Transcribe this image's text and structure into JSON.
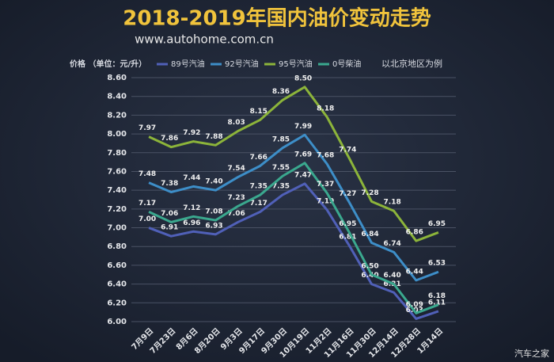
{
  "chart_data": {
    "type": "line",
    "title": "2018-2019年国内油价变动走势",
    "subtitle": "www.autohome.com.cn",
    "y_label": "价格 （单位：元/升）",
    "note": "以北京地区为例",
    "watermark": "汽车之家",
    "categories": [
      "7月9日",
      "7月23日",
      "8月6日",
      "8月20日",
      "9月3日",
      "9月17日",
      "9月30日",
      "10月19日",
      "11月2日",
      "11月16日",
      "11月30日",
      "12月14日",
      "12月28日",
      "1月14日"
    ],
    "series": [
      {
        "name": "89号汽油",
        "color": "#5060b8",
        "values": [
          7.0,
          6.91,
          6.96,
          6.93,
          7.06,
          7.17,
          7.35,
          7.47,
          7.19,
          6.81,
          6.4,
          6.31,
          6.03,
          6.11
        ],
        "value_labels": [
          "7.00",
          "6.91",
          "6.96",
          "6.93",
          "7.06",
          "7.17",
          "7.35",
          "7.47",
          "7.19",
          "6.81",
          "6.40",
          "6.31",
          "6.03",
          "6.11"
        ]
      },
      {
        "name": "92号汽油",
        "color": "#3d8ec8",
        "values": [
          7.48,
          7.38,
          7.44,
          7.4,
          7.54,
          7.66,
          7.85,
          7.99,
          7.68,
          7.27,
          6.84,
          6.74,
          6.44,
          6.53
        ],
        "value_labels": [
          "7.48",
          "7.38",
          "7.44",
          "7.40",
          "7.54",
          "7.66",
          "7.85",
          "7.99",
          "7.68",
          "7.27",
          "6.84",
          "6.74",
          "6.44",
          "6.53"
        ]
      },
      {
        "name": "95号汽油",
        "color": "#8cb43a",
        "values": [
          7.97,
          7.86,
          7.92,
          7.88,
          8.03,
          8.15,
          8.36,
          8.5,
          8.18,
          7.74,
          7.28,
          7.18,
          6.86,
          6.95
        ],
        "value_labels": [
          "7.97",
          "7.86",
          "7.92",
          "7.88",
          "8.03",
          "8.15",
          "8.36",
          "8.50",
          "8.18",
          "7.74",
          "7.28",
          "7.18",
          "6.86",
          "6.95"
        ]
      },
      {
        "name": "0号柴油",
        "color": "#3aa88e",
        "values": [
          7.17,
          7.06,
          7.12,
          7.08,
          7.23,
          7.35,
          7.55,
          7.69,
          7.37,
          6.95,
          6.5,
          6.4,
          6.09,
          6.18
        ],
        "value_labels": [
          "7.17",
          "7.06",
          "7.12",
          "7.08",
          "7.23",
          "7.35",
          "7.55",
          "7.69",
          "7.37",
          "6.95",
          "6.50",
          "6.40",
          "6.09",
          "6.18"
        ]
      }
    ],
    "ylim": [
      6.0,
      8.6
    ],
    "yticks": [
      {
        "value": 6.0,
        "label": "6.00"
      },
      {
        "value": 6.2,
        "label": "6.20"
      },
      {
        "value": 6.4,
        "label": "6.40"
      },
      {
        "value": 6.6,
        "label": "6.60"
      },
      {
        "value": 6.8,
        "label": "6.80"
      },
      {
        "value": 7.0,
        "label": "7.00"
      },
      {
        "value": 7.2,
        "label": "7.20"
      },
      {
        "value": 7.4,
        "label": "7.40"
      },
      {
        "value": 7.6,
        "label": "7.60"
      },
      {
        "value": 7.8,
        "label": "7.80"
      },
      {
        "value": 8.0,
        "label": "8.00"
      },
      {
        "value": 8.2,
        "label": "8.20"
      },
      {
        "value": 8.4,
        "label": "8.40"
      },
      {
        "value": 8.6,
        "label": "8.60"
      }
    ],
    "grid": true
  }
}
